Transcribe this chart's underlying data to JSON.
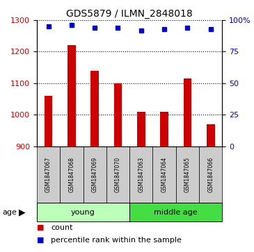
{
  "title": "GDS5879 / ILMN_2848018",
  "samples": [
    "GSM1847067",
    "GSM1847068",
    "GSM1847069",
    "GSM1847070",
    "GSM1847063",
    "GSM1847064",
    "GSM1847065",
    "GSM1847066"
  ],
  "counts": [
    1060,
    1220,
    1140,
    1100,
    1010,
    1010,
    1115,
    970
  ],
  "percentiles": [
    95,
    96,
    94,
    94,
    92,
    93,
    94,
    93
  ],
  "groups": [
    "young",
    "young",
    "young",
    "young",
    "middle age",
    "middle age",
    "middle age",
    "middle age"
  ],
  "group_labels": [
    "young",
    "middle age"
  ],
  "group_colors": [
    "#bbffbb",
    "#44dd44"
  ],
  "ylim_left": [
    900,
    1300
  ],
  "ylim_right": [
    0,
    100
  ],
  "yticks_left": [
    900,
    1000,
    1100,
    1200,
    1300
  ],
  "yticks_right": [
    0,
    25,
    50,
    75,
    100
  ],
  "bar_color": "#cc0000",
  "marker_color": "#0000cc",
  "bar_width": 0.35,
  "background_color": "#ffffff",
  "plot_bg_color": "#ffffff",
  "grid_color": "#000000",
  "tick_label_color_left": "#cc0000",
  "tick_label_color_right": "#0000cc",
  "sample_box_color": "#cccccc",
  "legend_count_label": "count",
  "legend_percentile_label": "percentile rank within the sample"
}
